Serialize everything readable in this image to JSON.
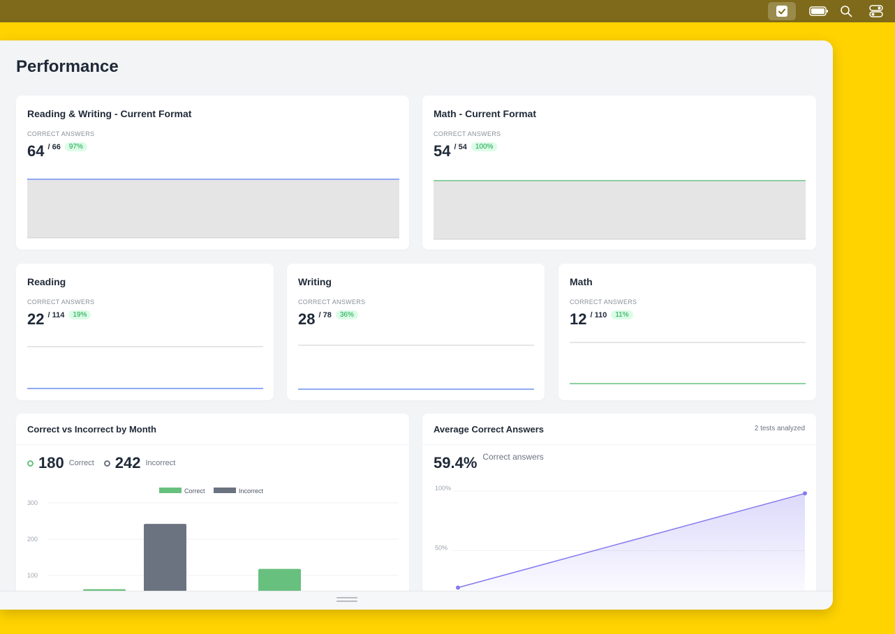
{
  "page": {
    "title": "Performance"
  },
  "menubar": {
    "icons": [
      "checkbox-icon",
      "battery-icon",
      "search-icon",
      "control-center-icon"
    ]
  },
  "cards": {
    "rw": {
      "title": "Reading & Writing - Current Format",
      "sub": "CORRECT ANSWERS",
      "value": "64",
      "total": "/ 66",
      "pct": "97%",
      "color": "#6b8cf0"
    },
    "math_full": {
      "title": "Math - Current Format",
      "sub": "CORRECT ANSWERS",
      "value": "54",
      "total": "/ 54",
      "pct": "100%",
      "color": "#68c07e"
    },
    "reading": {
      "title": "Reading",
      "sub": "CORRECT ANSWERS",
      "value": "22",
      "total": "/ 114",
      "pct": "19%",
      "color": "#6b8cf0"
    },
    "writing": {
      "title": "Writing",
      "sub": "CORRECT ANSWERS",
      "value": "28",
      "total": "/ 78",
      "pct": "36%",
      "color": "#6b8cf0"
    },
    "math": {
      "title": "Math",
      "sub": "CORRECT ANSWERS",
      "value": "12",
      "total": "/ 110",
      "pct": "11%",
      "color": "#68c07e"
    }
  },
  "bar_card": {
    "title": "Correct vs Incorrect by Month",
    "correct_count": "180",
    "correct_label": "Correct",
    "incorrect_count": "242",
    "incorrect_label": "Incorrect"
  },
  "line_card": {
    "title": "Average Correct Answers",
    "meta": "2 tests analyzed",
    "value": "59.4%",
    "value_label": "Correct answers"
  },
  "chart_data": [
    {
      "type": "bar",
      "series": [
        {
          "name": "Correct",
          "color": "#68c07e",
          "values": [
            62,
            118
          ]
        },
        {
          "name": "Incorrect",
          "color": "#6b7280",
          "values": [
            242,
            0
          ]
        }
      ],
      "categories": [
        "",
        ""
      ],
      "ylim": [
        0,
        300
      ],
      "yticks": [
        "300",
        "200",
        "100"
      ],
      "legend": "top-center",
      "grid": true
    },
    {
      "type": "area",
      "x": [
        1,
        2
      ],
      "values": [
        19,
        98
      ],
      "color": "#8479ef",
      "ylim": [
        0,
        100
      ],
      "yticks": [
        "100%",
        "50%"
      ],
      "grid": true
    }
  ]
}
